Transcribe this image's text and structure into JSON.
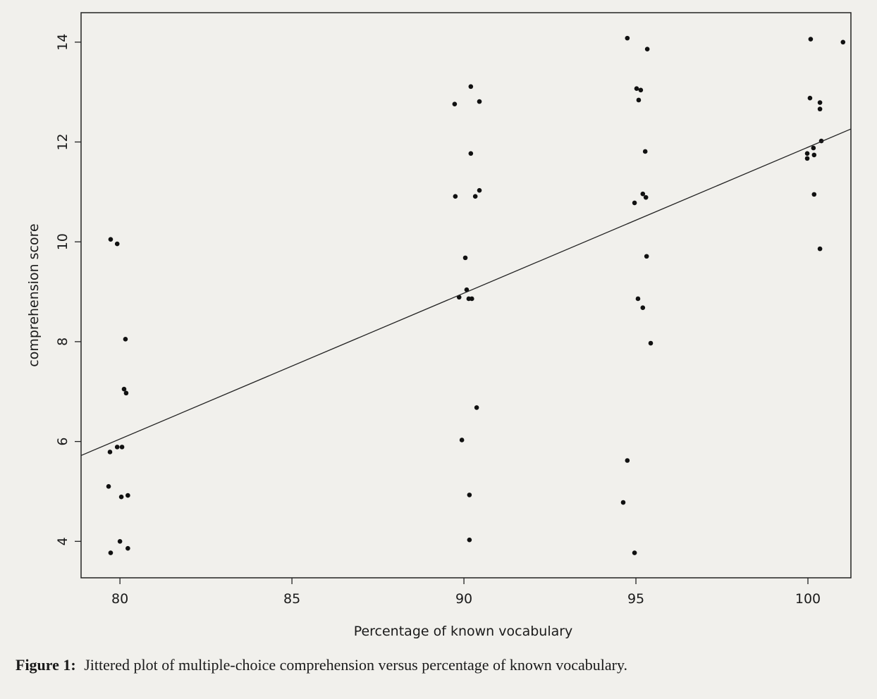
{
  "chart_data": {
    "type": "scatter",
    "x_label": "Percentage of known vocabulary",
    "y_label": "comprehension score",
    "caption_label": "Figure 1:",
    "caption": "Jittered plot of multiple-choice comprehension versus percentage of known vocabulary.",
    "xlim": [
      78.87,
      101.25
    ],
    "ylim": [
      3.27,
      14.59
    ],
    "xticks": [
      80,
      85,
      90,
      95,
      100
    ],
    "yticks": [
      4,
      6,
      8,
      10,
      12,
      14
    ],
    "color": "#111111",
    "x": [
      79.73,
      79.92,
      80.16,
      80.12,
      80.18,
      79.71,
      79.92,
      80.06,
      79.67,
      80.04,
      80.23,
      80.0,
      80.23,
      79.73,
      89.73,
      90.2,
      90.45,
      90.2,
      89.75,
      90.33,
      90.45,
      90.04,
      90.08,
      89.86,
      90.14,
      90.23,
      90.37,
      89.94,
      90.16,
      90.16,
      94.75,
      95.33,
      95.02,
      95.14,
      95.08,
      95.27,
      95.2,
      95.29,
      94.96,
      95.31,
      95.06,
      95.2,
      95.43,
      94.75,
      94.63,
      94.96,
      100.08,
      101.02,
      100.06,
      100.35,
      100.35,
      100.16,
      100.39,
      99.98,
      99.98,
      100.18,
      100.18,
      100.35
    ],
    "values": [
      10.05,
      9.96,
      8.05,
      7.05,
      6.97,
      5.79,
      5.89,
      5.89,
      5.1,
      4.89,
      4.92,
      4.0,
      3.86,
      3.77,
      12.76,
      13.11,
      12.81,
      11.77,
      10.91,
      10.91,
      11.03,
      9.68,
      9.04,
      8.89,
      8.86,
      8.86,
      6.68,
      6.03,
      4.93,
      4.03,
      14.08,
      13.86,
      13.07,
      13.04,
      12.84,
      11.81,
      10.96,
      10.89,
      10.78,
      9.71,
      8.86,
      8.68,
      7.97,
      5.62,
      4.78,
      3.77,
      14.06,
      14.0,
      12.88,
      12.79,
      12.66,
      11.88,
      12.02,
      11.77,
      11.67,
      11.74,
      10.95,
      9.86
    ],
    "regression_line": {
      "x": [
        78.87,
        101.25
      ],
      "values": [
        5.72,
        12.26
      ]
    }
  }
}
